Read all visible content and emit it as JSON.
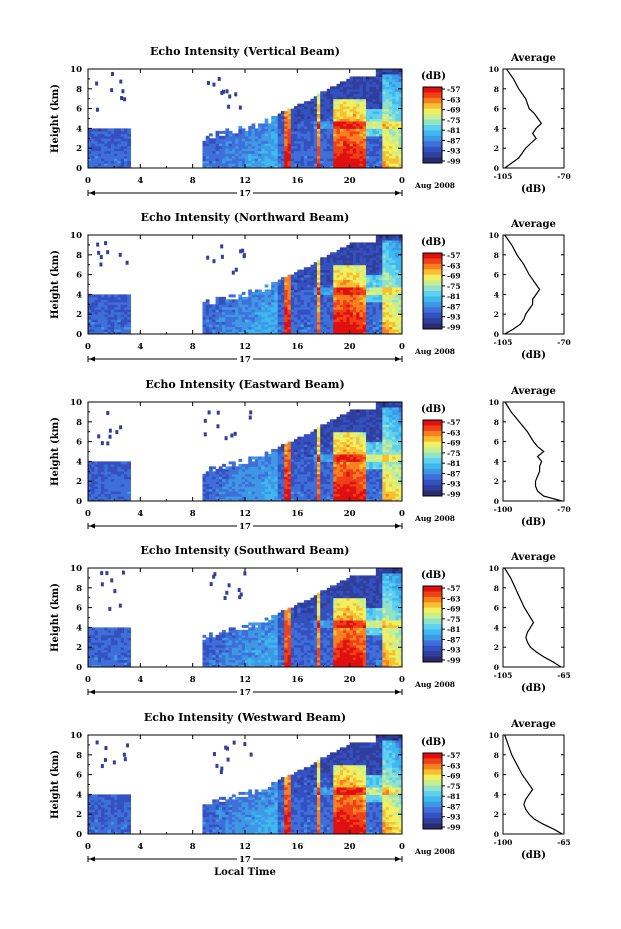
{
  "colors": {
    "scale": [
      "#2a2a6e",
      "#2f3f9a",
      "#3550c0",
      "#3f6fd8",
      "#3f98e6",
      "#3fb8f0",
      "#60d0f0",
      "#90e2c8",
      "#c8ee90",
      "#f0f060",
      "#f8c030",
      "#f88020",
      "#f04018",
      "#e01010"
    ]
  },
  "chart_data": [
    {
      "type": "heatmap",
      "title": "Echo Intensity (Vertical Beam)",
      "ylabel": "Height (km)",
      "xticks": [
        "0",
        "4",
        "8",
        "12",
        "16",
        "20",
        "0"
      ],
      "yticks": [
        "0",
        "2",
        "4",
        "6",
        "8",
        "10"
      ],
      "xlim": [
        0,
        24
      ],
      "ylim": [
        0,
        10
      ],
      "day_label": "17",
      "date_label": "Aug 2008",
      "colorbar": {
        "unit": "(dB)",
        "ticks": [
          "-57",
          "-63",
          "-69",
          "-75",
          "-81",
          "-87",
          "-93",
          "-99"
        ]
      },
      "profile": {
        "title": "Average",
        "xlabel": "(dB)",
        "xticks": [
          "-105",
          "-70"
        ],
        "xlim": [
          -105,
          -70
        ],
        "points": [
          [
            -104,
            0
          ],
          [
            -100,
            0.5
          ],
          [
            -96,
            1
          ],
          [
            -94,
            1.5
          ],
          [
            -92,
            2
          ],
          [
            -89,
            2.5
          ],
          [
            -86,
            3
          ],
          [
            -88,
            3.5
          ],
          [
            -86,
            4
          ],
          [
            -83,
            4.5
          ],
          [
            -85,
            5
          ],
          [
            -87,
            5.5
          ],
          [
            -90,
            6
          ],
          [
            -92,
            7
          ],
          [
            -96,
            8
          ],
          [
            -99,
            9
          ],
          [
            -103,
            10
          ]
        ]
      }
    },
    {
      "type": "heatmap",
      "title": "Echo Intensity (Northward Beam)",
      "ylabel": "Height (km)",
      "xticks": [
        "0",
        "4",
        "8",
        "12",
        "16",
        "20",
        "0"
      ],
      "yticks": [
        "0",
        "2",
        "4",
        "6",
        "8",
        "10"
      ],
      "xlim": [
        0,
        24
      ],
      "ylim": [
        0,
        10
      ],
      "day_label": "17",
      "date_label": "Aug 2008",
      "colorbar": {
        "unit": "(dB)",
        "ticks": [
          "-57",
          "-63",
          "-69",
          "-75",
          "-81",
          "-87",
          "-93",
          "-99"
        ]
      },
      "profile": {
        "title": "Average",
        "xlabel": "(dB)",
        "xticks": [
          "-105",
          "-70"
        ],
        "xlim": [
          -105,
          -70
        ],
        "points": [
          [
            -104,
            0
          ],
          [
            -99,
            0.5
          ],
          [
            -95,
            1
          ],
          [
            -93,
            1.5
          ],
          [
            -92,
            2
          ],
          [
            -90,
            2.5
          ],
          [
            -88,
            3
          ],
          [
            -88,
            3.5
          ],
          [
            -86,
            4
          ],
          [
            -84,
            4.5
          ],
          [
            -86,
            5
          ],
          [
            -88,
            5.5
          ],
          [
            -90,
            6
          ],
          [
            -93,
            7
          ],
          [
            -97,
            8
          ],
          [
            -100,
            9
          ],
          [
            -104,
            10
          ]
        ]
      }
    },
    {
      "type": "heatmap",
      "title": "Echo Intensity (Eastward Beam)",
      "ylabel": "Height (km)",
      "xticks": [
        "0",
        "4",
        "8",
        "12",
        "16",
        "20",
        "0"
      ],
      "yticks": [
        "0",
        "2",
        "4",
        "6",
        "8",
        "10"
      ],
      "xlim": [
        0,
        24
      ],
      "ylim": [
        0,
        10
      ],
      "day_label": "17",
      "date_label": "Aug 2008",
      "colorbar": {
        "unit": "(dB)",
        "ticks": [
          "-57",
          "-63",
          "-69",
          "-75",
          "-81",
          "-87",
          "-93",
          "-99"
        ]
      },
      "profile": {
        "title": "Average",
        "xlabel": "(dB)",
        "xticks": [
          "-100",
          "-70"
        ],
        "xlim": [
          -100,
          -70
        ],
        "points": [
          [
            -71,
            0
          ],
          [
            -80,
            0.5
          ],
          [
            -83,
            1
          ],
          [
            -84,
            1.5
          ],
          [
            -84,
            2
          ],
          [
            -83,
            2.5
          ],
          [
            -82,
            3
          ],
          [
            -82,
            3.5
          ],
          [
            -81,
            4
          ],
          [
            -83,
            4.5
          ],
          [
            -80,
            5
          ],
          [
            -83,
            5.5
          ],
          [
            -85,
            6
          ],
          [
            -88,
            7
          ],
          [
            -92,
            8
          ],
          [
            -96,
            9
          ],
          [
            -99,
            10
          ]
        ]
      }
    },
    {
      "type": "heatmap",
      "title": "Echo Intensity (Southward Beam)",
      "ylabel": "Height (km)",
      "xticks": [
        "0",
        "4",
        "8",
        "12",
        "16",
        "20",
        "0"
      ],
      "yticks": [
        "0",
        "2",
        "4",
        "6",
        "8",
        "10"
      ],
      "xlim": [
        0,
        24
      ],
      "ylim": [
        0,
        10
      ],
      "day_label": "17",
      "date_label": "Aug 2008",
      "colorbar": {
        "unit": "(dB)",
        "ticks": [
          "-57",
          "-63",
          "-69",
          "-75",
          "-81",
          "-87",
          "-93",
          "-99"
        ]
      },
      "profile": {
        "title": "Average",
        "xlabel": "(dB)",
        "xticks": [
          "-105",
          "-65"
        ],
        "xlim": [
          -105,
          -65
        ],
        "points": [
          [
            -67,
            0
          ],
          [
            -72,
            0.5
          ],
          [
            -78,
            1
          ],
          [
            -83,
            1.5
          ],
          [
            -87,
            2
          ],
          [
            -89,
            2.5
          ],
          [
            -90,
            3
          ],
          [
            -89,
            3.5
          ],
          [
            -87,
            4
          ],
          [
            -85,
            4.5
          ],
          [
            -87,
            5
          ],
          [
            -89,
            5.5
          ],
          [
            -91,
            6
          ],
          [
            -94,
            7
          ],
          [
            -97,
            8
          ],
          [
            -100,
            9
          ],
          [
            -104,
            10
          ]
        ]
      }
    },
    {
      "type": "heatmap",
      "title": "Echo Intensity (Westward Beam)",
      "ylabel": "Height (km)",
      "xlabel": "Local Time",
      "xticks": [
        "0",
        "4",
        "8",
        "12",
        "16",
        "20",
        "0"
      ],
      "yticks": [
        "0",
        "2",
        "4",
        "6",
        "8",
        "10"
      ],
      "xlim": [
        0,
        24
      ],
      "ylim": [
        0,
        10
      ],
      "day_label": "17",
      "date_label": "Aug 2008",
      "colorbar": {
        "unit": "(dB)",
        "ticks": [
          "-57",
          "-63",
          "-69",
          "-75",
          "-81",
          "-87",
          "-93",
          "-99"
        ]
      },
      "profile": {
        "title": "Average",
        "xlabel": "(dB)",
        "xticks": [
          "-100",
          "-65"
        ],
        "xlim": [
          -100,
          -65
        ],
        "points": [
          [
            -66,
            0
          ],
          [
            -71,
            0.5
          ],
          [
            -77,
            1
          ],
          [
            -82,
            1.5
          ],
          [
            -85,
            2
          ],
          [
            -87,
            2.5
          ],
          [
            -88,
            3
          ],
          [
            -87,
            3.5
          ],
          [
            -85,
            4
          ],
          [
            -83,
            4.5
          ],
          [
            -85,
            5
          ],
          [
            -87,
            5.5
          ],
          [
            -89,
            6
          ],
          [
            -92,
            7
          ],
          [
            -95,
            8
          ],
          [
            -97,
            9
          ],
          [
            -99,
            10
          ]
        ]
      }
    }
  ]
}
